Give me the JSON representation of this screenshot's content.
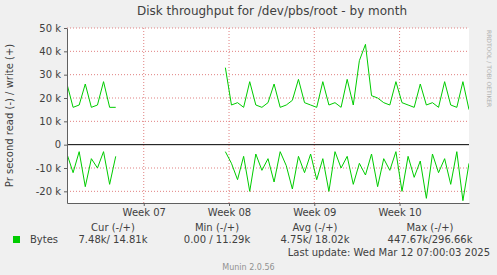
{
  "chart_data": {
    "type": "line",
    "title": "Disk throughput for /dev/pbs/root - by month",
    "y_label": "Pr second read (-) / write (+)",
    "x": [
      0,
      0.5,
      1,
      1.5,
      2,
      2.5,
      3,
      3.5,
      4,
      4.5,
      5,
      5.5,
      6,
      6.5,
      7,
      7.5,
      8,
      8.5,
      9,
      9.5,
      10,
      10.5,
      11,
      11.5,
      12,
      12.5,
      13,
      13.5,
      14,
      14.5,
      15,
      15.5,
      16,
      16.5,
      17,
      17.5,
      18,
      18.5,
      19,
      19.5,
      20,
      20.5,
      21,
      21.5,
      22,
      22.5,
      23,
      23.5,
      24,
      24.5,
      25,
      25.5,
      26,
      26.5,
      27,
      27.5,
      28,
      28.5,
      29,
      29.5,
      30,
      30.5,
      31,
      31.5,
      32,
      32.5,
      33
    ],
    "xlim": [
      0,
      33
    ],
    "xticks": [
      {
        "value": 6.3,
        "label": "Week 07"
      },
      {
        "value": 13.3,
        "label": "Week 08"
      },
      {
        "value": 20.3,
        "label": "Week 09"
      },
      {
        "value": 27.3,
        "label": "Week 10"
      }
    ],
    "ylim": [
      -25000,
      50000
    ],
    "yticks": [
      {
        "value": -20000,
        "label": "-20 k"
      },
      {
        "value": -10000,
        "label": "-10 k"
      },
      0,
      {
        "value": 10000,
        "label": "10 k"
      },
      {
        "value": 20000,
        "label": "20 k"
      },
      {
        "value": 30000,
        "label": "30 k"
      },
      {
        "value": 40000,
        "label": "40 k"
      },
      {
        "value": 50000,
        "label": "50 k"
      }
    ],
    "grid": true,
    "series": [
      {
        "name": "Bytes",
        "color": "#00cc00",
        "values": [
          26000,
          16000,
          17000,
          26000,
          16000,
          17000,
          27000,
          16000,
          16000,
          null,
          null,
          null,
          null,
          null,
          null,
          null,
          null,
          null,
          null,
          null,
          null,
          null,
          null,
          null,
          null,
          null,
          33000,
          17000,
          18000,
          16000,
          27000,
          17000,
          16000,
          18000,
          26000,
          16000,
          17000,
          19000,
          28000,
          18000,
          17000,
          16000,
          27000,
          17000,
          18000,
          16000,
          28000,
          17000,
          36000,
          43000,
          21000,
          20000,
          18000,
          17000,
          27000,
          18000,
          17000,
          16000,
          26000,
          17000,
          18000,
          16000,
          27000,
          17000,
          16000,
          27000,
          15000
        ]
      },
      {
        "color": "#00cc00",
        "values": [
          -4000,
          -12000,
          -3000,
          -18000,
          -6000,
          -10000,
          -3000,
          -17000,
          -5000,
          null,
          null,
          null,
          null,
          null,
          null,
          null,
          null,
          null,
          null,
          null,
          null,
          null,
          null,
          null,
          null,
          null,
          -3000,
          -8000,
          -15000,
          -5000,
          -20000,
          -4000,
          -11000,
          -6000,
          -16000,
          -3000,
          -9000,
          -19000,
          -5000,
          -12000,
          -4000,
          -15000,
          -6000,
          -20000,
          -3000,
          -10000,
          -5000,
          -17000,
          -8000,
          -13000,
          -4000,
          -18000,
          -6000,
          -11000,
          -3000,
          -20000,
          -5000,
          -14000,
          -7000,
          -23000,
          -4000,
          -12000,
          -6000,
          -17000,
          -3000,
          -24000,
          -8000
        ]
      }
    ],
    "legend_table": {
      "headers": [
        "Cur (-/+)",
        "Min (-/+)",
        "Avg (-/+)",
        "Max (-/+)"
      ],
      "values": [
        "7.48k/ 14.81k",
        "0.00 / 11.29k",
        "4.75k/ 18.02k",
        "447.67k/296.66k"
      ]
    },
    "footer": "Last update: Wed Mar 12 07:00:03 2025",
    "credit": "Munin 2.0.56",
    "watermark": "RRDTOOL / TOBI OETIKER"
  }
}
